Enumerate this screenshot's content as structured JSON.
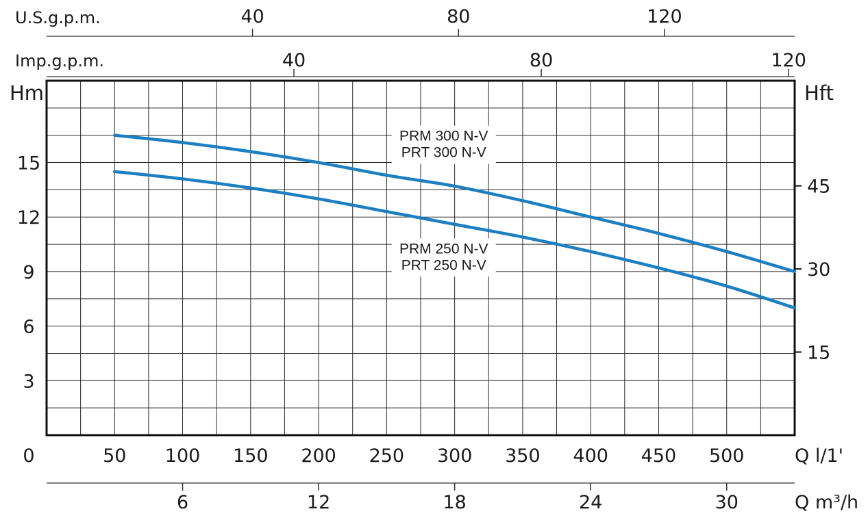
{
  "chart_data": {
    "type": "line",
    "axes": {
      "left": {
        "label": "Hm",
        "ticks": [
          "3",
          "6",
          "9",
          "12",
          "15"
        ],
        "ylim": [
          0,
          19.5
        ]
      },
      "right": {
        "label": "Hft",
        "ticks": [
          "15",
          "30",
          "45"
        ]
      },
      "bottom": {
        "label": "Q l/1'",
        "origin": "0",
        "ticks": [
          "50",
          "100",
          "150",
          "200",
          "250",
          "300",
          "350",
          "400",
          "450",
          "500"
        ],
        "xlim": [
          0,
          550
        ]
      },
      "bottom2": {
        "label": "Q m³/h",
        "ticks": [
          "6",
          "12",
          "18",
          "24",
          "30"
        ]
      },
      "top_usgpm": {
        "label": "U.S.g.p.m.",
        "ticks": [
          "40",
          "80",
          "120"
        ]
      },
      "top_impgpm": {
        "label": "Imp.g.p.m.",
        "ticks": [
          "40",
          "80",
          "120"
        ]
      }
    },
    "grid": true,
    "line_color": "#1b7fc1",
    "series": [
      {
        "name": "PRM 300 N-V / PRT 300 N-V",
        "label_lines": [
          "PRM 300 N-V",
          "PRT 300 N-V"
        ],
        "x": [
          50,
          100,
          150,
          200,
          250,
          300,
          350,
          400,
          450,
          500,
          550
        ],
        "y": [
          16.5,
          16.1,
          15.6,
          15.0,
          14.3,
          13.7,
          12.9,
          12.0,
          11.1,
          10.1,
          9.0
        ]
      },
      {
        "name": "PRM 250 N-V / PRT 250 N-V",
        "label_lines": [
          "PRM 250 N-V",
          "PRT 250 N-V"
        ],
        "x": [
          50,
          100,
          150,
          200,
          250,
          300,
          350,
          400,
          450,
          500,
          550
        ],
        "y": [
          14.5,
          14.1,
          13.6,
          13.0,
          12.3,
          11.6,
          10.9,
          10.1,
          9.2,
          8.2,
          7.0
        ]
      }
    ]
  }
}
